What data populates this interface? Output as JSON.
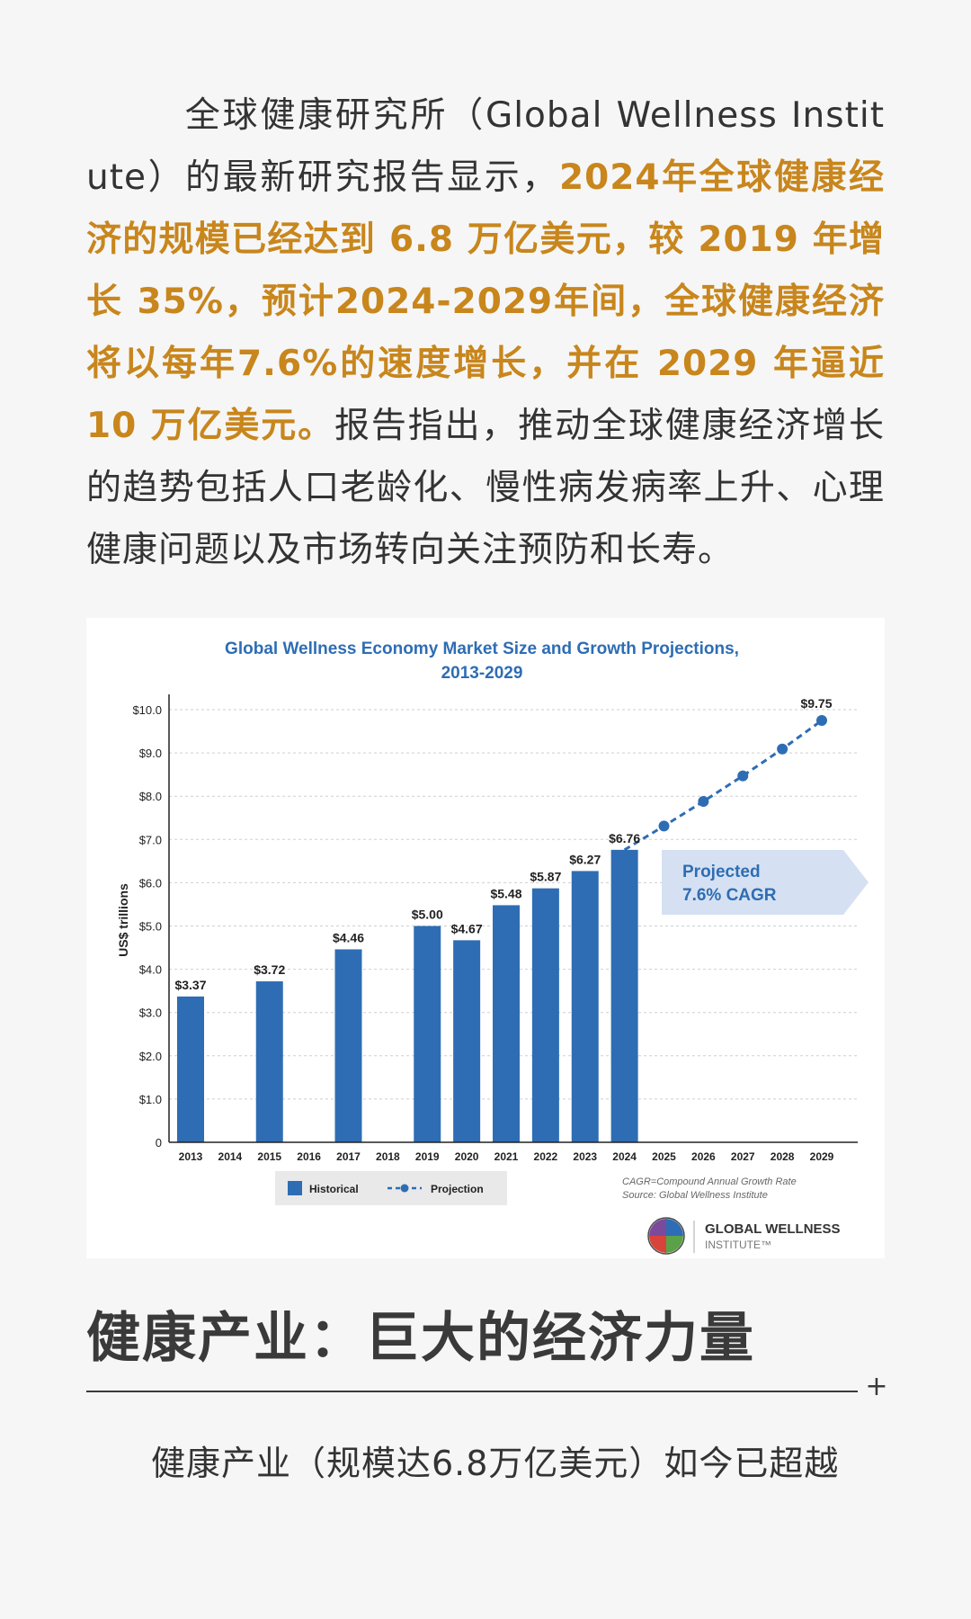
{
  "intro": {
    "text_start": "全球健康研究所（Global Wellness Institute）的最新研究报告显示，",
    "highlight": "2024年全球健康经济的规模已经达到 6.8 万亿美元，较 2019 年增长 35%，预计2024-2029年间，全球健康经济将以每年7.6%的速度增长，并在 2029 年逼近 10 万亿美元。",
    "text_end": "报告指出，推动全球健康经济增长的趋势包括人口老龄化、慢性病发病率上升、心理健康问题以及市场转向关注预防和长寿。"
  },
  "chart_data": {
    "type": "bar",
    "title": "Global Wellness Economy Market Size and Growth Projections,",
    "subtitle": "2013-2029",
    "ylabel": "US$ trillions",
    "ylim": [
      0,
      10
    ],
    "y_ticks": [
      "0",
      "$1.0",
      "$2.0",
      "$3.0",
      "$4.0",
      "$5.0",
      "$6.0",
      "$7.0",
      "$8.0",
      "$9.0",
      "$10.0"
    ],
    "grid": "horizontal dashed",
    "categories": [
      "2013",
      "2014",
      "2015",
      "2016",
      "2017",
      "2018",
      "2019",
      "2020",
      "2021",
      "2022",
      "2023",
      "2024",
      "2025",
      "2026",
      "2027",
      "2028",
      "2029"
    ],
    "series": [
      {
        "name": "Historical",
        "kind": "bar",
        "color": "#2e6db4",
        "points": [
          {
            "x": "2013",
            "y": 3.37,
            "label": "$3.37"
          },
          {
            "x": "2015",
            "y": 3.72,
            "label": "$3.72"
          },
          {
            "x": "2017",
            "y": 4.46,
            "label": "$4.46"
          },
          {
            "x": "2019",
            "y": 5.0,
            "label": "$5.00"
          },
          {
            "x": "2020",
            "y": 4.67,
            "label": "$4.67"
          },
          {
            "x": "2021",
            "y": 5.48,
            "label": "$5.48"
          },
          {
            "x": "2022",
            "y": 5.87,
            "label": "$5.87"
          },
          {
            "x": "2023",
            "y": 6.27,
            "label": "$6.27"
          },
          {
            "x": "2024",
            "y": 6.76,
            "label": "$6.76"
          }
        ]
      },
      {
        "name": "Projection",
        "kind": "dashed-line",
        "color": "#2e6db4",
        "points": [
          {
            "x": "2024",
            "y": 6.76
          },
          {
            "x": "2025",
            "y": 7.31
          },
          {
            "x": "2026",
            "y": 7.88
          },
          {
            "x": "2027",
            "y": 8.47
          },
          {
            "x": "2028",
            "y": 9.09
          },
          {
            "x": "2029",
            "y": 9.75,
            "label": "$9.75"
          }
        ]
      }
    ],
    "annotation": {
      "line1": "Projected",
      "line2": "7.6% CAGR"
    },
    "legend_position": "bottom-left",
    "footnote1": "CAGR=Compound Annual Growth Rate",
    "footnote2": "Source: Global Wellness Institute"
  },
  "logo": {
    "line1": "GLOBAL WELLNESS",
    "line2": "INSTITUTE™"
  },
  "section": {
    "heading": "健康产业：巨大的经济力量",
    "plus": "+",
    "text": "健康产业（规模达6.8万亿美元）如今已超越"
  }
}
